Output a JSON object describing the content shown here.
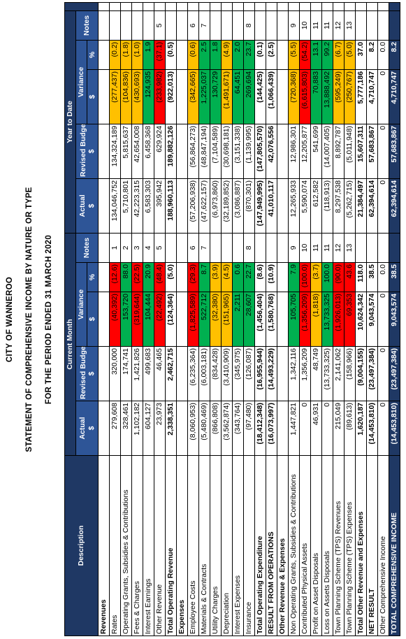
{
  "title": {
    "line1": "CITY OF WANNEROO",
    "line2": "STATEMENT OF COMPREHENSIVE INCOME BY NATURE OR TYPE",
    "line3": "FOR THE PERIOD ENDED 31 MARCH 2020"
  },
  "headers": {
    "description": "Description",
    "current_month": "Current Month",
    "year_to_date": "Year to Date",
    "actual": "Actual",
    "revised_budget": "Revised Budget",
    "variance": "Variance",
    "notes": "Notes",
    "dollar": "$",
    "percent": "%"
  },
  "colors": {
    "header": "#1f3864",
    "red": "#ff0000",
    "yellow": "#ffc000",
    "green": "#00b050"
  },
  "rows": [
    {
      "type": "section",
      "desc": "Revenues"
    },
    {
      "desc": "Rates",
      "cm": [
        "279,608",
        "320,000",
        "(40,392)",
        "(12.6)",
        "red"
      ],
      "cm_note": "1",
      "ytd": [
        "134,046,752",
        "134,324,189",
        "(277,437)",
        "(0.2)",
        "yel"
      ],
      "ytd_note": ""
    },
    {
      "desc": "Operating Grants, Subsidies & Contributions",
      "cm": [
        "328,461",
        "174,741",
        "153,720",
        "88.0",
        "grn"
      ],
      "cm_note": "2",
      "ytd": [
        "5,710,801",
        "5,815,637",
        "(104,836)",
        "(1.8)",
        "yel"
      ],
      "ytd_note": ""
    },
    {
      "desc": "Fees & Charges",
      "cm": [
        "1,102,182",
        "1,421,826",
        "(319,644)",
        "(22.5)",
        "red"
      ],
      "cm_note": "3",
      "ytd": [
        "42,223,315",
        "42,654,008",
        "(430,693)",
        "(1.0)",
        "yel"
      ],
      "ytd_note": ""
    },
    {
      "desc": "Interest Earnings",
      "cm": [
        "604,127",
        "499,683",
        "104,444",
        "20.9",
        "grn"
      ],
      "cm_note": "4",
      "ytd": [
        "6,583,303",
        "6,458,368",
        "124,935",
        "1.9",
        "grn"
      ],
      "ytd_note": ""
    },
    {
      "desc": "Other Revenue",
      "cm": [
        "23,973",
        "46,465",
        "(22,492)",
        "(48.4)",
        "red"
      ],
      "cm_note": "5",
      "ytd": [
        "395,942",
        "629,924",
        "(233,982)",
        "(37.1)",
        "red"
      ],
      "ytd_note": "5"
    },
    {
      "type": "total",
      "desc": "Total Operating Revenue",
      "cm": [
        "2,338,351",
        "2,462,715",
        "(124,364)",
        "(5.0)",
        ""
      ],
      "cm_note": "",
      "ytd": [
        "188,960,113",
        "189,882,126",
        "(922,013)",
        "(0.5)",
        ""
      ],
      "ytd_note": ""
    },
    {
      "type": "section",
      "desc": "Expenses"
    },
    {
      "desc": "Employee Costs",
      "cm": [
        "(8,060,953)",
        "(6,235,364)",
        "(1,825,589)",
        "(29.3)",
        "red"
      ],
      "cm_note": "6",
      "ytd": [
        "(57,206,938)",
        "(56,864,273)",
        "(342,665)",
        "(0.6)",
        "yel"
      ],
      "ytd_note": "6"
    },
    {
      "desc": "Materials & Contracts",
      "cm": [
        "(5,480,469)",
        "(6,003,181)",
        "522,712",
        "8.7",
        "grn"
      ],
      "cm_note": "7",
      "ytd": [
        "(47,622,157)",
        "(48,847,194)",
        "1,225,037",
        "2.5",
        "grn"
      ],
      "ytd_note": "7"
    },
    {
      "desc": "Utility Charges",
      "cm": [
        "(866,808)",
        "(834,428)",
        "(32,380)",
        "(3.9)",
        "yel"
      ],
      "cm_note": "",
      "ytd": [
        "(6,973,860)",
        "(7,104,589)",
        "130,729",
        "1.8",
        "grn"
      ],
      "ytd_note": ""
    },
    {
      "desc": "Depreciation",
      "cm": [
        "(3,562,874)",
        "(3,410,909)",
        "(151,965)",
        "(4.5)",
        "yel"
      ],
      "cm_note": "",
      "ytd": [
        "(32,189,852)",
        "(30,698,181)",
        "(1,491,671)",
        "(4.9)",
        "yel"
      ],
      "ytd_note": ""
    },
    {
      "desc": "Interest Expenses",
      "cm": [
        "(343,764)",
        "(345,975)",
        "2,211",
        "0.6",
        "grn"
      ],
      "cm_note": "",
      "ytd": [
        "(3,086,887)",
        "(3,151,338)",
        "64,451",
        "2.0",
        "grn"
      ],
      "ytd_note": ""
    },
    {
      "desc": "Insurance",
      "cm": [
        "(97,480)",
        "(126,087)",
        "28,607",
        "22.7",
        "grn"
      ],
      "cm_note": "8",
      "ytd": [
        "(870,301)",
        "(1,139,995)",
        "269,694",
        "23.7",
        "grn"
      ],
      "ytd_note": "8"
    },
    {
      "type": "total",
      "desc": "Total Operating Expenditure",
      "cm": [
        "(18,412,348)",
        "(16,955,944)",
        "(1,456,404)",
        "(8.6)",
        ""
      ],
      "cm_note": "",
      "ytd": [
        "(147,949,995)",
        "(147,805,570)",
        "(144,425)",
        "(0.1)",
        ""
      ],
      "ytd_note": ""
    },
    {
      "type": "total",
      "desc": "RESULT FROM OPERATIONS",
      "cm": [
        "(16,073,997)",
        "(14,493,229)",
        "(1,580,768)",
        "(10.9)",
        ""
      ],
      "cm_note": "",
      "ytd": [
        "41,010,117",
        "42,076,556",
        "(1,066,439)",
        "(2.5)",
        ""
      ],
      "ytd_note": ""
    },
    {
      "type": "section",
      "desc": "Other Revenue & Expenses"
    },
    {
      "desc": "Non Operating Grants, Subsidies & Contributions",
      "cm": [
        "1,447,821",
        "1,342,116",
        "105,705",
        "7.9",
        "grn"
      ],
      "cm_note": "9",
      "ytd": [
        "12,265,933",
        "12,986,301",
        "(720,368)",
        "(5.5)",
        "yel"
      ],
      "ytd_note": "9"
    },
    {
      "desc": "Contributed Physical Assets",
      "cm": [
        "0",
        "1,356,209",
        "(1,356,209)",
        "(100.0)",
        "red"
      ],
      "cm_note": "10",
      "ytd": [
        "5,590,074",
        "12,205,877",
        "(6,615,803)",
        "(54.2)",
        "red"
      ],
      "ytd_note": "10"
    },
    {
      "desc": "Profit on Asset Disposals",
      "cm": [
        "46,931",
        "48,749",
        "(1,818)",
        "(3.7)",
        "yel"
      ],
      "cm_note": "11",
      "ytd": [
        "612,582",
        "541,699",
        "70,883",
        "13.1",
        "grn"
      ],
      "ytd_note": "11"
    },
    {
      "desc": "Loss on Assets Disposals",
      "cm": [
        "0",
        "(13,733,325)",
        "13,733,325",
        "100.0",
        "grn"
      ],
      "cm_note": "11",
      "ytd": [
        "(118,913)",
        "(14,007,405)",
        "13,888,492",
        "99.2",
        "grn"
      ],
      "ytd_note": "11"
    },
    {
      "desc": "Town Planning Scheme (TPS) Revenues",
      "cm": [
        "215,049",
        "2,141,062",
        "(1,926,013)",
        "(90.0)",
        "red"
      ],
      "cm_note": "12",
      "ytd": [
        "8,297,538",
        "8,892,787",
        "(595,249)",
        "(6.7)",
        "yel"
      ],
      "ytd_note": "12"
    },
    {
      "desc": "Town Planning Scheme (TPS) Expenses",
      "cm": [
        "(89,613)",
        "(158,966)",
        "69,353",
        "43.6",
        "red"
      ],
      "cm_note": "13",
      "ytd": [
        "(5,262,715)",
        "(5,011,948)",
        "(250,767)",
        "(5.0)",
        "yel"
      ],
      "ytd_note": "13"
    },
    {
      "type": "total",
      "desc": "Total Other Revenue and Expenses",
      "cm": [
        "1,620,187",
        "(9,004,155)",
        "10,624,342",
        "118.0",
        ""
      ],
      "cm_note": "",
      "ytd": [
        "21,384,497",
        "15,607,311",
        "5,777,186",
        "37.0",
        ""
      ],
      "ytd_note": ""
    },
    {
      "type": "total",
      "desc": "NET RESULT",
      "cm": [
        "(14,453,810)",
        "(23,497,384)",
        "9,043,574",
        "38.5",
        ""
      ],
      "cm_note": "",
      "ytd": [
        "62,394,614",
        "57,683,867",
        "4,710,747",
        "8.2",
        ""
      ],
      "ytd_note": ""
    },
    {
      "type": "plain",
      "desc": "Other Comprehensive Income",
      "cm": [
        "0",
        "0",
        "0",
        "0.0",
        ""
      ],
      "cm_note": "",
      "ytd": [
        "0",
        "0",
        "0",
        "0.0",
        ""
      ],
      "ytd_note": ""
    },
    {
      "type": "grand",
      "desc": "TOTAL COMPREHENSIVE INCOME",
      "cm": [
        "(14,453,810)",
        "(23,497,384)",
        "9,043,574",
        "38.5",
        ""
      ],
      "cm_note": "",
      "ytd": [
        "62,394,614",
        "57,683,867",
        "4,710,747",
        "8.2",
        ""
      ],
      "ytd_note": ""
    }
  ]
}
